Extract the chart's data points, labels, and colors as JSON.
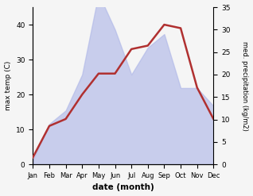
{
  "months": [
    "Jan",
    "Feb",
    "Mar",
    "Apr",
    "May",
    "Jun",
    "Jul",
    "Aug",
    "Sep",
    "Oct",
    "Nov",
    "Dec"
  ],
  "temp": [
    2,
    11,
    13,
    20,
    26,
    26,
    33,
    34,
    40,
    39,
    22,
    13
  ],
  "precip": [
    1,
    9,
    12,
    20,
    38,
    30,
    20,
    26,
    29,
    17,
    17,
    13
  ],
  "temp_ylim": [
    0,
    45
  ],
  "precip_ylim": [
    0,
    35
  ],
  "temp_yticks": [
    0,
    10,
    20,
    30,
    40
  ],
  "precip_yticks": [
    0,
    5,
    10,
    15,
    20,
    25,
    30,
    35
  ],
  "fill_color": "#b0b8e8",
  "fill_alpha": 0.65,
  "line_color": "#b03030",
  "ylabel_left": "max temp (C)",
  "ylabel_right": "med. precipitation (kg/m2)",
  "xlabel": "date (month)",
  "bg_color": "#f5f5f5"
}
